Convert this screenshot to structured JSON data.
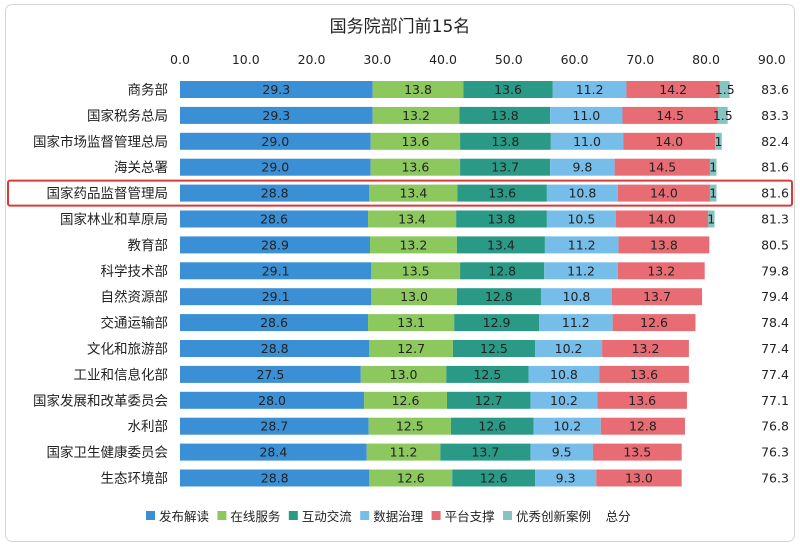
{
  "chart_data": {
    "type": "bar",
    "orientation": "horizontal",
    "stacked": true,
    "title": "国务院部门前15名",
    "xlim": [
      0,
      90
    ],
    "x_ticks": [
      "0.0",
      "10.0",
      "20.0",
      "30.0",
      "40.0",
      "50.0",
      "60.0",
      "70.0",
      "80.0",
      "90.0"
    ],
    "categories": [
      "商务部",
      "国家税务总局",
      "国家市场监督管理总局",
      "海关总署",
      "国家药品监督管理局",
      "国家林业和草原局",
      "教育部",
      "科学技术部",
      "自然资源部",
      "交通运输部",
      "文化和旅游部",
      "工业和信息化部",
      "国家发展和改革委员会",
      "水利部",
      "国家卫生健康委员会",
      "生态环境部"
    ],
    "highlighted_category": "国家药品监督管理局",
    "series": [
      {
        "name": "发布解读",
        "color": "#3b8fd4",
        "values": [
          29.3,
          29.3,
          29.0,
          29.0,
          28.8,
          28.6,
          28.9,
          29.1,
          29.1,
          28.6,
          28.8,
          27.5,
          28.0,
          28.7,
          28.4,
          28.8
        ],
        "labels": [
          "29.3",
          "29.3",
          "29.0",
          "29.0",
          "28.8",
          "28.6",
          "28.9",
          "29.1",
          "29.1",
          "28.6",
          "28.8",
          "27.5",
          "28.0",
          "28.7",
          "28.4",
          "28.8"
        ]
      },
      {
        "name": "在线服务",
        "color": "#8cc85e",
        "values": [
          13.8,
          13.2,
          13.6,
          13.6,
          13.4,
          13.4,
          13.2,
          13.5,
          13.0,
          13.1,
          12.7,
          13.0,
          12.6,
          12.5,
          11.2,
          12.6
        ],
        "labels": [
          "13.8",
          "13.2",
          "13.6",
          "13.6",
          "13.4",
          "13.4",
          "13.2",
          "13.5",
          "13.0",
          "13.1",
          "12.7",
          "13.0",
          "12.6",
          "12.5",
          "11.2",
          "12.6"
        ]
      },
      {
        "name": "互动交流",
        "color": "#2a9a86",
        "values": [
          13.6,
          13.8,
          13.8,
          13.7,
          13.6,
          13.8,
          13.4,
          12.8,
          12.8,
          12.9,
          12.5,
          12.5,
          12.7,
          12.6,
          13.7,
          12.6
        ],
        "labels": [
          "13.6",
          "13.8",
          "13.8",
          "13.7",
          "13.6",
          "13.8",
          "13.4",
          "12.8",
          "12.8",
          "12.9",
          "12.5",
          "12.5",
          "12.7",
          "12.6",
          "13.7",
          "12.6"
        ]
      },
      {
        "name": "数据治理",
        "color": "#76bde9",
        "values": [
          11.2,
          11.0,
          11.0,
          9.8,
          10.8,
          10.5,
          11.2,
          11.2,
          10.8,
          11.2,
          10.2,
          10.8,
          10.2,
          10.2,
          9.5,
          9.3
        ],
        "labels": [
          "11.2",
          "11.0",
          "11.0",
          "9.8",
          "10.8",
          "10.5",
          "11.2",
          "11.2",
          "10.8",
          "11.2",
          "10.2",
          "10.8",
          "10.2",
          "10.2",
          "9.5",
          "9.3"
        ]
      },
      {
        "name": "平台支撑",
        "color": "#e76c73",
        "values": [
          14.2,
          14.5,
          14.0,
          14.5,
          14.0,
          14.0,
          13.8,
          13.2,
          13.7,
          12.6,
          13.2,
          13.6,
          13.6,
          12.8,
          13.5,
          13.0
        ],
        "labels": [
          "14.2",
          "14.5",
          "14.0",
          "14.5",
          "14.0",
          "14.0",
          "13.8",
          "13.2",
          "13.7",
          "12.6",
          "13.2",
          "13.6",
          "13.6",
          "12.8",
          "13.5",
          "13.0"
        ]
      },
      {
        "name": "优秀创新案例",
        "color": "#86c4c1",
        "values": [
          1.5,
          1.5,
          1,
          1,
          1,
          1,
          0,
          0,
          0,
          0,
          0,
          0,
          0,
          0,
          0,
          0
        ],
        "labels": [
          "1.5",
          "1.5",
          "1",
          "1",
          "1",
          "1",
          "",
          "",
          "",
          "",
          "",
          "",
          "",
          "",
          "",
          ""
        ]
      }
    ],
    "totals_name": "总分",
    "totals": [
      "83.6",
      "83.3",
      "82.4",
      "81.6",
      "81.6",
      "81.3",
      "80.5",
      "79.8",
      "79.4",
      "78.4",
      "77.4",
      "77.4",
      "77.1",
      "76.8",
      "76.3",
      "76.3"
    ],
    "highlight_color": "#d93a3a",
    "grid": false,
    "legend_position": "bottom"
  }
}
